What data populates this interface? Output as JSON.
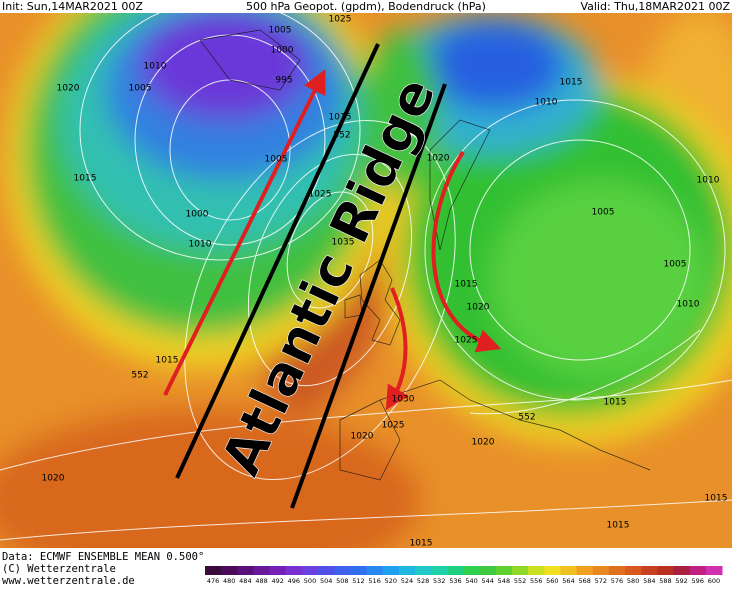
{
  "header": {
    "init": "Init: Sun,14MAR2021 00Z",
    "title": "500 hPa Geopot. (gpdm), Bodendruck (hPa)",
    "valid": "Valid: Thu,18MAR2021 00Z"
  },
  "annotation": "Atlantic Ridge",
  "isobar_labels": [
    1005,
    1000,
    995,
    1010,
    1005,
    1020,
    1015,
    1000,
    1010,
    1005,
    1015,
    552,
    1025,
    1035,
    1025,
    1015,
    1010,
    1020,
    1010,
    1005,
    1005,
    1015,
    1020,
    1025,
    1010,
    1015,
    552,
    1030,
    1025,
    1020,
    1020,
    552,
    1015,
    1020,
    1015,
    1015,
    1015
  ],
  "footer": {
    "data": "Data: ECMWF ENSEMBLE MEAN 0.500°",
    "copyright": "(C) Wetterzentrale",
    "url": "www.wetterzentrale.de"
  },
  "colorbar": {
    "ticks": [
      476,
      480,
      484,
      488,
      492,
      496,
      500,
      504,
      508,
      512,
      516,
      520,
      524,
      528,
      532,
      536,
      540,
      544,
      548,
      552,
      556,
      560,
      564,
      568,
      572,
      576,
      580,
      584,
      588,
      592,
      596,
      600
    ]
  }
}
